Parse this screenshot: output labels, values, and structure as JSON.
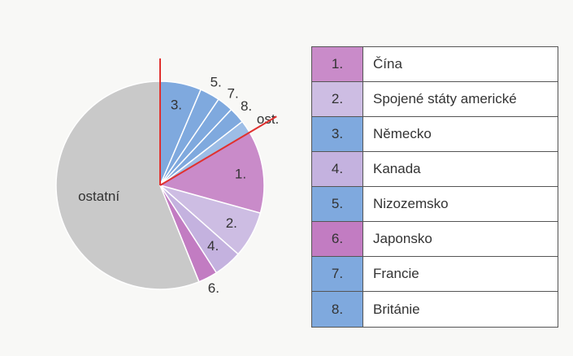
{
  "chart_data": {
    "type": "pie",
    "categories": [
      "3.",
      "5.",
      "7.",
      "8.",
      "ost.",
      "1.",
      "2.",
      "4.",
      "6.",
      "ostatní"
    ],
    "values": [
      6.4,
      3.1,
      2.5,
      2.5,
      2,
      12.8,
      7.2,
      4.4,
      3,
      56.1
    ],
    "colors": [
      "#7fa9de",
      "#7fa9de",
      "#7fa9de",
      "#7fa9de",
      "#9dbde6",
      "#c98bc9",
      "#cdbde3",
      "#c4b2df",
      "#c27cc2",
      "#c9c9c9"
    ]
  },
  "legend": {
    "rows": [
      {
        "number": "1.",
        "name": "Čína",
        "color": "#c98bc9"
      },
      {
        "number": "2.",
        "name": "Spojené státy americké",
        "color": "#cdbde3"
      },
      {
        "number": "3.",
        "name": "Německo",
        "color": "#7fa9de"
      },
      {
        "number": "4.",
        "name": "Kanada",
        "color": "#c4b2df"
      },
      {
        "number": "5.",
        "name": "Nizozemsko",
        "color": "#7fa9de"
      },
      {
        "number": "6.",
        "name": "Japonsko",
        "color": "#c27cc2"
      },
      {
        "number": "7.",
        "name": "Francie",
        "color": "#7fa9de"
      },
      {
        "number": "8.",
        "name": "Británie",
        "color": "#7fa9de"
      }
    ]
  }
}
